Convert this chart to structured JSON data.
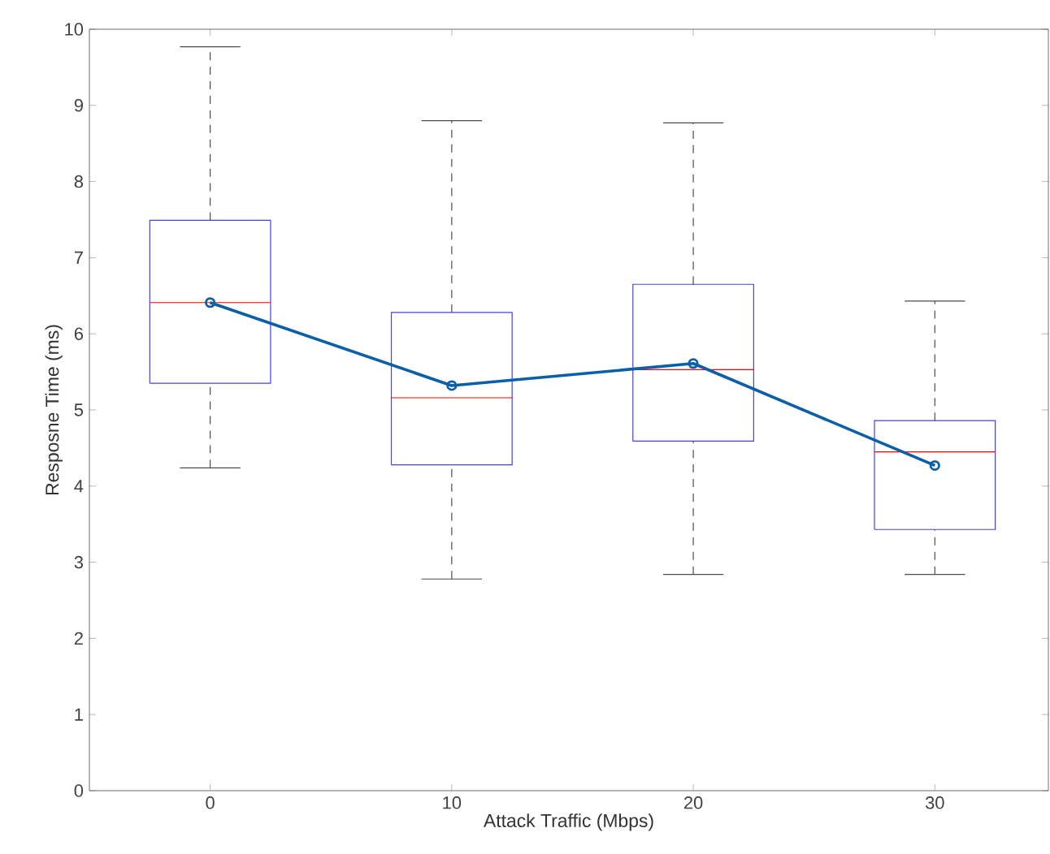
{
  "chart_data": {
    "type": "box",
    "xlabel": "Attack Traffic (Mbps)",
    "ylabel": "Resposne Time (ms)",
    "categories": [
      "0",
      "10",
      "20",
      "30"
    ],
    "ylim": [
      0,
      10
    ],
    "yticks": [
      0,
      1,
      2,
      3,
      4,
      5,
      6,
      7,
      8,
      9,
      10
    ],
    "grid": false,
    "marker": "circle",
    "series": [
      {
        "color": "#4444dd",
        "boxes": [
          {
            "low": 4.24,
            "q1": 5.35,
            "median": 6.41,
            "q3": 7.49,
            "high": 9.77
          },
          {
            "low": 2.78,
            "q1": 4.28,
            "median": 5.16,
            "q3": 6.28,
            "high": 8.8
          },
          {
            "low": 2.84,
            "q1": 4.59,
            "median": 5.53,
            "q3": 6.65,
            "high": 8.77
          },
          {
            "low": 2.84,
            "q1": 3.43,
            "median": 4.45,
            "q3": 4.86,
            "high": 6.43
          }
        ]
      },
      {
        "type": "line",
        "color": "#0a5fa8",
        "values": [
          6.41,
          5.32,
          5.61,
          4.27
        ]
      }
    ]
  }
}
